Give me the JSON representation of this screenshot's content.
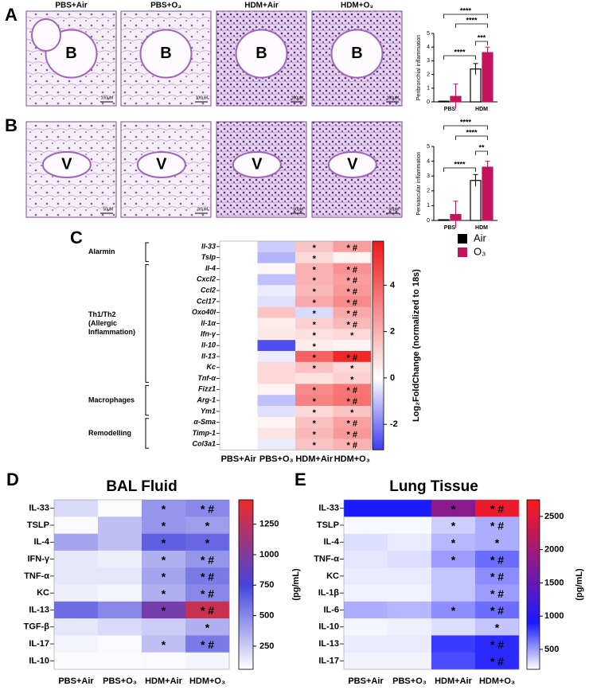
{
  "histology": {
    "columns": [
      "PBS+Air",
      "PBS+O₃",
      "HDM+Air",
      "HDM+O₃"
    ],
    "rows": [
      {
        "label": "A",
        "letter": "B",
        "scale_bar": "100µM"
      },
      {
        "label": "B",
        "letter": "V",
        "scale_bar": "50µM"
      }
    ]
  },
  "chart_data": [
    {
      "type": "bar",
      "y_label": "Peribronchial inflammation",
      "categories": [
        "PBS",
        "HDM"
      ],
      "series": [
        {
          "color": "#000000",
          "fill": "#ffffff",
          "values": [
            0.05,
            2.4
          ],
          "errors": [
            0,
            0.4
          ]
        },
        {
          "color": "#c5125c",
          "fill": "#c5125c",
          "values": [
            0.4,
            3.6
          ],
          "errors": [
            0.9,
            0.4
          ]
        }
      ],
      "ylim": [
        0,
        5
      ],
      "yticks": [
        0,
        1,
        2,
        3,
        4,
        5
      ],
      "significance": [
        "****",
        "****",
        "****",
        "***"
      ]
    },
    {
      "type": "bar",
      "y_label": "Perivascular inflammation",
      "categories": [
        "PBS",
        "HDM"
      ],
      "series": [
        {
          "name": "Air",
          "color": "#000000",
          "fill": "#ffffff",
          "values": [
            0.05,
            2.7
          ],
          "errors": [
            0,
            0.4
          ]
        },
        {
          "name": "O₃",
          "color": "#c5125c",
          "fill": "#c5125c",
          "values": [
            0.4,
            3.6
          ],
          "errors": [
            0.9,
            0.4
          ]
        }
      ],
      "ylim": [
        0,
        5
      ],
      "yticks": [
        0,
        1,
        2,
        3,
        4,
        5
      ],
      "significance": [
        "****",
        "****",
        "****",
        "**"
      ]
    },
    {
      "type": "heatmap",
      "panel": "C",
      "columns": [
        "PBS+Air",
        "PBS+O₃",
        "HDM+Air",
        "HDM+O₃"
      ],
      "z_label": "Log₂FoldChange (normalized to 18s)",
      "zlim": [
        -3.1,
        5.9
      ],
      "zticks": [
        -2,
        0,
        2,
        4
      ],
      "colormap": [
        {
          "value": -3.1,
          "color": "#3c3cf0"
        },
        {
          "value": 0,
          "color": "#ffffff"
        },
        {
          "value": 5.9,
          "color": "#f01818"
        }
      ],
      "groups": [
        {
          "label": [
            "Alarmin"
          ],
          "rows": [
            "Il-33",
            "Tslp"
          ],
          "values": [
            [
              0,
              -0.8,
              1.5,
              2.5
            ],
            [
              0,
              -1.2,
              1.0,
              0.3
            ]
          ],
          "annotations": [
            [
              null,
              null,
              "*",
              "* #"
            ],
            [
              null,
              null,
              "*",
              null
            ]
          ]
        },
        {
          "label": [
            "Th1/Th2",
            "(Allergic",
            "Inflammation)"
          ],
          "rows": [
            "Il-4",
            "Cxcl2",
            "Ccl2",
            "Ccl17",
            "Oxo40l",
            "Il-1α",
            "Ifn-γ",
            "Il-10",
            "Il-13",
            "Kc",
            "Tnf-α"
          ],
          "values": [
            [
              0,
              0.2,
              2.0,
              2.8
            ],
            [
              0,
              -1.0,
              2.0,
              2.5
            ],
            [
              0,
              -0.3,
              1.8,
              2.6
            ],
            [
              0,
              -0.5,
              2.2,
              3.0
            ],
            [
              0,
              1.5,
              -0.6,
              2.2
            ],
            [
              0,
              0.5,
              1.2,
              1.8
            ],
            [
              0,
              0.6,
              0.8,
              1.0
            ],
            [
              0,
              -2.8,
              0.5,
              0.3
            ],
            [
              0,
              -0.3,
              4.0,
              5.5
            ],
            [
              0,
              1.0,
              1.6,
              1.0
            ],
            [
              0,
              1.0,
              0.8,
              1.2
            ]
          ],
          "annotations": [
            [
              null,
              null,
              "*",
              "* #"
            ],
            [
              null,
              null,
              "*",
              "* #"
            ],
            [
              null,
              null,
              "*",
              "* #"
            ],
            [
              null,
              null,
              "*",
              "* #"
            ],
            [
              null,
              null,
              "*",
              "* #"
            ],
            [
              null,
              null,
              "*",
              "* #"
            ],
            [
              null,
              null,
              "*",
              "*"
            ],
            [
              null,
              null,
              "*",
              null
            ],
            [
              null,
              null,
              "*",
              "* #"
            ],
            [
              null,
              null,
              "*",
              "*"
            ],
            [
              null,
              null,
              null,
              "*"
            ]
          ]
        },
        {
          "label": [
            "Macrophages"
          ],
          "rows": [
            "Fizz1",
            "Arg-1",
            "Ym1"
          ],
          "values": [
            [
              0,
              0.3,
              3.0,
              3.5
            ],
            [
              0,
              -1.0,
              3.2,
              3.6
            ],
            [
              0,
              -0.5,
              1.0,
              1.5
            ]
          ],
          "annotations": [
            [
              null,
              null,
              "*",
              "* #"
            ],
            [
              null,
              null,
              "*",
              "* #"
            ],
            [
              null,
              null,
              "*",
              "*"
            ]
          ]
        },
        {
          "label": [
            "Remodelling"
          ],
          "rows": [
            "α-Sma",
            "Timp-1",
            "Col3a1"
          ],
          "values": [
            [
              0,
              0.3,
              1.6,
              2.4
            ],
            [
              0,
              0.7,
              1.8,
              2.6
            ],
            [
              0,
              -0.3,
              1.5,
              2.0
            ]
          ],
          "annotations": [
            [
              null,
              null,
              "*",
              "* #"
            ],
            [
              null,
              null,
              "*",
              "* #"
            ],
            [
              null,
              null,
              "*",
              "* #"
            ]
          ]
        }
      ]
    },
    {
      "type": "heatmap",
      "panel": "D",
      "title": "BAL Fluid",
      "columns": [
        "PBS+Air",
        "PBS+O₃",
        "HDM+Air",
        "HDM+O₃"
      ],
      "z_label": "(pg/mL)",
      "zlim": [
        60,
        1450
      ],
      "zticks": [
        250,
        500,
        750,
        1000,
        1250
      ],
      "colormap": [
        {
          "value": 60,
          "color": "#ffffff"
        },
        {
          "value": 750,
          "color": "#4444dd"
        },
        {
          "value": 1450,
          "color": "#ee2a2a"
        }
      ],
      "rows": [
        "IL-33",
        "TSLP",
        "IL-4",
        "IFN-γ",
        "TNF-α",
        "KC",
        "IL-13",
        "TGF-β",
        "IL-17",
        "IL-10"
      ],
      "values": [
        [
          200,
          80,
          450,
          500
        ],
        [
          80,
          300,
          450,
          420
        ],
        [
          400,
          300,
          650,
          620
        ],
        [
          150,
          120,
          350,
          450
        ],
        [
          150,
          150,
          400,
          550
        ],
        [
          120,
          100,
          350,
          500
        ],
        [
          600,
          500,
          950,
          1300
        ],
        [
          150,
          200,
          250,
          350
        ],
        [
          100,
          80,
          300,
          550
        ],
        [
          70,
          70,
          80,
          100
        ]
      ],
      "annotations": [
        [
          null,
          null,
          "*",
          "* #"
        ],
        [
          null,
          null,
          "*",
          "*"
        ],
        [
          null,
          null,
          "*",
          "*"
        ],
        [
          null,
          null,
          "*",
          "* #"
        ],
        [
          null,
          null,
          "*",
          "* #"
        ],
        [
          null,
          null,
          "*",
          "* #"
        ],
        [
          null,
          null,
          "*",
          "* #"
        ],
        [
          null,
          null,
          null,
          "*"
        ],
        [
          null,
          null,
          "*",
          "* #"
        ],
        [
          null,
          null,
          null,
          null
        ]
      ]
    },
    {
      "type": "heatmap",
      "panel": "E",
      "title": "Lung Tissue",
      "columns": [
        "PBS+Air",
        "PBS+O₃",
        "HDM+Air",
        "HDM+O₃"
      ],
      "z_label": "(pg/mL)",
      "zlim": [
        200,
        2750
      ],
      "zticks": [
        500,
        1000,
        1500,
        2000,
        2500
      ],
      "colormap": [
        {
          "value": 200,
          "color": "#ffffff"
        },
        {
          "value": 900,
          "color": "#1a1aff"
        },
        {
          "value": 2750,
          "color": "#ff1a1a"
        }
      ],
      "rows": [
        "IL-33",
        "TSLP",
        "IL-4",
        "TNF-α",
        "KC",
        "IL-1β",
        "IL-6",
        "IL-10",
        "IL-13",
        "IL-17"
      ],
      "values": [
        [
          900,
          900,
          1800,
          2600
        ],
        [
          220,
          220,
          350,
          450
        ],
        [
          300,
          260,
          420,
          450
        ],
        [
          280,
          300,
          500,
          650
        ],
        [
          260,
          260,
          380,
          550
        ],
        [
          240,
          240,
          380,
          500
        ],
        [
          450,
          420,
          550,
          650
        ],
        [
          230,
          250,
          300,
          380
        ],
        [
          260,
          260,
          800,
          850
        ],
        [
          240,
          240,
          750,
          850
        ]
      ],
      "annotations": [
        [
          null,
          null,
          "*",
          "* #"
        ],
        [
          null,
          null,
          "*",
          "* #"
        ],
        [
          null,
          null,
          "*",
          "*"
        ],
        [
          null,
          null,
          "*",
          "* #"
        ],
        [
          null,
          null,
          null,
          "* #"
        ],
        [
          null,
          null,
          null,
          "* #"
        ],
        [
          null,
          null,
          "*",
          "* #"
        ],
        [
          null,
          null,
          null,
          "*"
        ],
        [
          null,
          null,
          null,
          "* #"
        ],
        [
          null,
          null,
          null,
          "* #"
        ]
      ]
    }
  ]
}
